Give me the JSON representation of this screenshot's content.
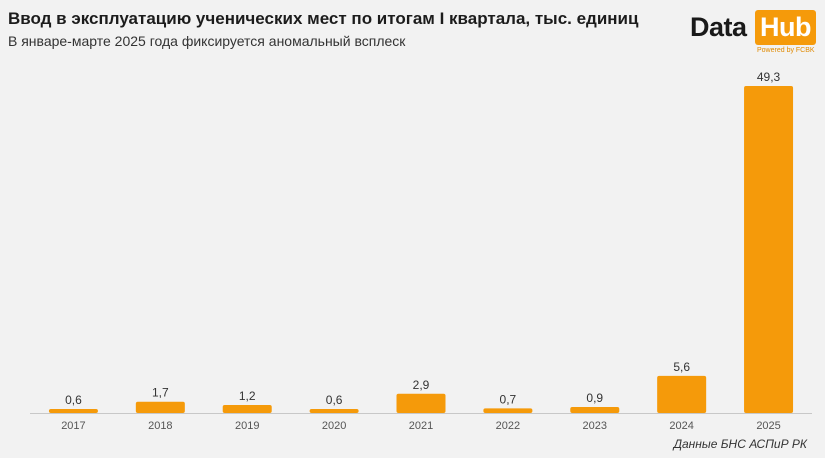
{
  "header": {
    "title": "Ввод в эксплуатацию ученических мест по итогам I квартала, тыс. единиц",
    "subtitle": "В январе-марте 2025 года фиксируется аномальный всплеск"
  },
  "logo": {
    "word1": "Data",
    "word2": "Hub",
    "tagline": "Powered by FCBK",
    "accent_color": "#f59a0a"
  },
  "source": "Данные БНС АСПиР РК",
  "chart_data": {
    "type": "bar",
    "categories": [
      "2017",
      "2018",
      "2019",
      "2020",
      "2021",
      "2022",
      "2023",
      "2024",
      "2025"
    ],
    "values": [
      0.6,
      1.7,
      1.2,
      0.6,
      2.9,
      0.7,
      0.9,
      5.6,
      49.3
    ],
    "value_labels": [
      "0,6",
      "1,7",
      "1,2",
      "0,6",
      "2,9",
      "0,7",
      "0,9",
      "5,6",
      "49,3"
    ],
    "ylim": [
      0,
      49.3
    ],
    "bar_color": "#f59a0a",
    "grid": false
  }
}
